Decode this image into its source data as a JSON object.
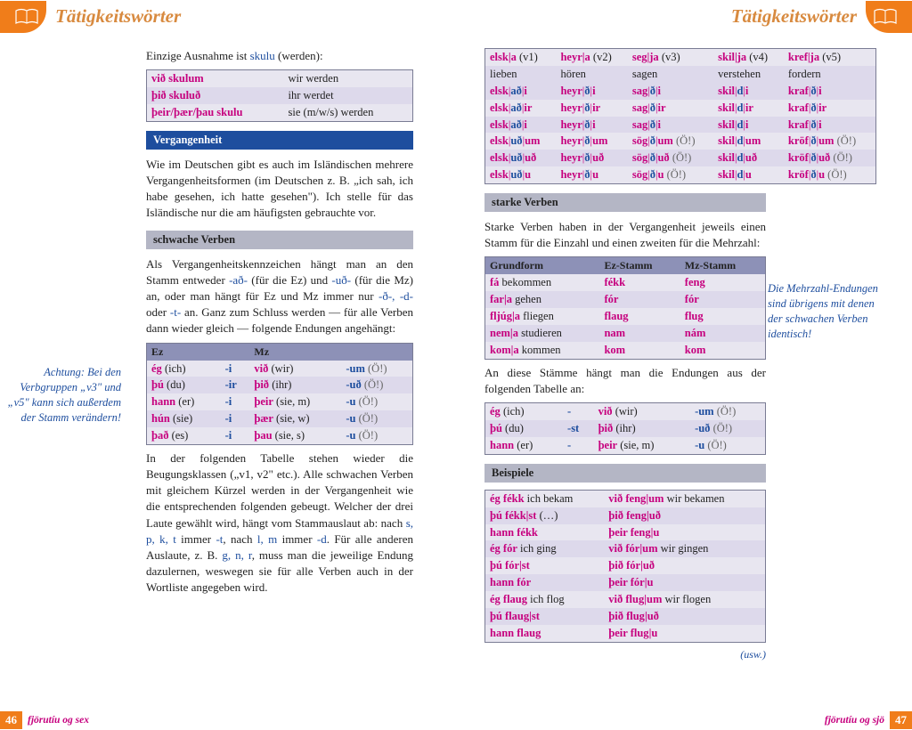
{
  "header": {
    "title_left": "Tätigkeitswörter",
    "title_right": "Tätigkeitswörter"
  },
  "left": {
    "intro": "Einzige Ausnahme ist ",
    "intro_word": "skulu",
    "intro_tail": " (werden):",
    "skulu_table": [
      [
        "við skulum",
        "wir werden"
      ],
      [
        "þið skuluð",
        "ihr werdet"
      ],
      [
        "þeir/þær/þau skulu",
        "sie (m/w/s) werden"
      ]
    ],
    "section_vergangen": "Vergangenheit",
    "para1": "Wie im Deutschen gibt es auch im Isländischen mehrere Vergangenheitsformen (im Deutschen z. B. „ich sah, ich habe gesehen, ich hatte gesehen\"). Ich stelle für das Isländische nur die am häufigsten gebrauchte vor.",
    "section_schwache": "schwache Verben",
    "para2_a": "Als Vergangenheitskennzeichen hängt man an den Stamm entweder ",
    "para2_ad": "-að-",
    "para2_b": " (für die Ez) und ",
    "para2_ud": "-uð-",
    "para2_c": " (für die Mz) an, oder man hängt für Ez und Mz immer nur ",
    "para2_d": "-ð-, -d-",
    "para2_e": " oder ",
    "para2_t": "-t-",
    "para2_f": " an. Ganz zum Schluss werden — für alle Verben dann wieder gleich — folgende Endungen angehängt:",
    "margin1": "Achtung: Bei den Verbgruppen „v3\" und „v5\" kann sich außerdem der Stamm verändern!",
    "endings_head": [
      "Ez",
      "",
      "Mz",
      ""
    ],
    "endings": [
      [
        "ég (ich)",
        "-i",
        "við (wir)",
        "-um (Ö!)"
      ],
      [
        "þú (du)",
        "-ir",
        "þið (ihr)",
        "-uð (Ö!)"
      ],
      [
        "hann (er)",
        "-i",
        "þeir (sie, m)",
        "-u (Ö!)"
      ],
      [
        "hún (sie)",
        "-i",
        "þær (sie, w)",
        "-u (Ö!)"
      ],
      [
        "það (es)",
        "-i",
        "þau (sie, s)",
        "-u (Ö!)"
      ]
    ],
    "para3_a": "In der folgenden Tabelle stehen wieder die Beugungsklassen („v1, v2\" etc.). Alle schwachen Verben mit gleichem Kürzel werden in der Vergangenheit wie die entsprechenden folgenden gebeugt. Welcher der drei Laute gewählt wird, hängt vom Stammauslaut ab: nach ",
    "para3_spkt": "s, p, k, t",
    "para3_b": " immer ",
    "para3_t": "-t",
    "para3_c": ", nach ",
    "para3_lm": "l, m",
    "para3_d": " immer ",
    "para3_dd": "-d",
    "para3_e": ". Für alle anderen Auslaute, z. B. ",
    "para3_gnr": "g, n, r",
    "para3_f": ", muss man die jeweilige Endung dazulernen, weswegen sie für alle Verben auch in der Wortliste angegeben wird."
  },
  "right": {
    "verb_classes": {
      "head": [
        {
          "v": "elsk|a",
          "c": "(v1)",
          "g": "lieben"
        },
        {
          "v": "heyr|a",
          "c": "(v2)",
          "g": "hören"
        },
        {
          "v": "seg|ja",
          "c": "(v3)",
          "g": "sagen"
        },
        {
          "v": "skil|ja",
          "c": "(v4)",
          "g": "verstehen"
        },
        {
          "v": "kref|ja",
          "c": "(v5)",
          "g": "fordern"
        }
      ],
      "rows": [
        [
          "elsk|að|i",
          "heyr|ð|i",
          "sag|ð|i",
          "skil|d|i",
          "kraf|ð|i"
        ],
        [
          "elsk|að|ir",
          "heyr|ð|ir",
          "sag|ð|ir",
          "skil|d|ir",
          "kraf|ð|ir"
        ],
        [
          "elsk|að|i",
          "heyr|ð|i",
          "sag|ð|i",
          "skil|d|i",
          "kraf|ð|i"
        ],
        [
          "elsk|uð|um",
          "heyr|ð|um",
          "sög|ð|um (Ö!)",
          "skil|d|um",
          "kröf|ð|um (Ö!)"
        ],
        [
          "elsk|uð|uð",
          "heyr|ð|uð",
          "sög|ð|uð (Ö!)",
          "skil|d|uð",
          "kröf|ð|uð (Ö!)"
        ],
        [
          "elsk|uð|u",
          "heyr|ð|u",
          "sög|ð|u (Ö!)",
          "skil|d|u",
          "kröf|ð|u (Ö!)"
        ]
      ]
    },
    "section_stark": "starke Verben",
    "para_stark": "Starke Verben haben in der Vergangenheit jeweils einen Stamm für die Einzahl und einen zweiten für die Mehrzahl:",
    "margin2": "Die Mehrzahl-Endungen sind übrigens mit denen der schwachen Verben identisch!",
    "stark_head": [
      "Grundform",
      "Ez-Stamm",
      "Mz-Stamm"
    ],
    "stark_rows": [
      [
        "fá",
        "bekommen",
        "fékk",
        "feng"
      ],
      [
        "far|a",
        "gehen",
        "fór",
        "fór"
      ],
      [
        "fljúg|a",
        "fliegen",
        "flaug",
        "flug"
      ],
      [
        "nem|a",
        "studieren",
        "nam",
        "nám"
      ],
      [
        "kom|a",
        "kommen",
        "kom",
        "kom"
      ]
    ],
    "para_endings": "An diese Stämme hängt man die Endungen aus der folgenden Tabelle an:",
    "stark_end": [
      [
        "ég (ich)",
        "-",
        "við (wir)",
        "-um (Ö!)"
      ],
      [
        "þú (du)",
        "-st",
        "þið (ihr)",
        "-uð (Ö!)"
      ],
      [
        "hann (er)",
        "-",
        "þeir (sie, m)",
        "-u (Ö!)"
      ]
    ],
    "section_beispiele": "Beispiele",
    "beispiele": [
      [
        "ég fékk",
        "ich bekam",
        "við feng|um",
        "wir bekamen"
      ],
      [
        "þú fékk|st",
        "(…)",
        "þið feng|uð",
        ""
      ],
      [
        "hann fékk",
        "",
        "þeir feng|u",
        ""
      ],
      [
        "ég fór",
        "ich ging",
        "við fór|um",
        "wir gingen"
      ],
      [
        "þú fór|st",
        "",
        "þið fór|uð",
        ""
      ],
      [
        "hann fór",
        "",
        "þeir fór|u",
        ""
      ],
      [
        "ég flaug",
        "ich flog",
        "við flug|um",
        "wir flogen"
      ],
      [
        "þú flaug|st",
        "",
        "þið flug|uð",
        ""
      ],
      [
        "hann flaug",
        "",
        "þeir flug|u",
        ""
      ]
    ],
    "usw": "(usw.)"
  },
  "footer": {
    "left_num": "46",
    "left_text": "fjörutíu og sex",
    "right_text": "fjörutíu og sjö",
    "right_num": "47"
  },
  "colors": {
    "orange": "#f07d1a",
    "magenta": "#c6007e",
    "blue": "#1e4e9e",
    "table_bg": "#e8e6f0",
    "table_head": "#8d91b7",
    "grey_banner": "#b4b6c5"
  }
}
